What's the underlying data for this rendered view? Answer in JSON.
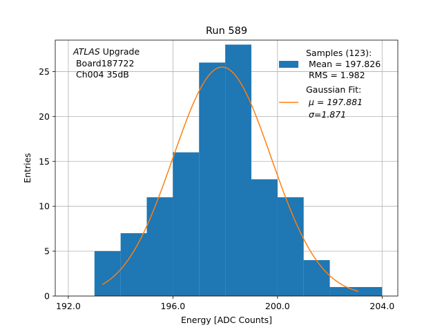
{
  "chart_data": {
    "type": "bar",
    "title": "Run 589",
    "xlabel": "Energy [ADC Counts]",
    "ylabel": "Entries",
    "xlim": [
      191.5,
      204.6
    ],
    "ylim": [
      0,
      28.5
    ],
    "grid": true,
    "legend_position": "top-right",
    "x_ticks": [
      192,
      196,
      200,
      204
    ],
    "x_tick_labels": [
      "192.0",
      "196.0",
      "200.0",
      "204.0"
    ],
    "y_ticks": [
      0,
      5,
      10,
      15,
      20,
      25
    ],
    "y_tick_labels": [
      "0",
      "5",
      "10",
      "15",
      "20",
      "25"
    ],
    "bin_edges": [
      193,
      194,
      195,
      196,
      197,
      198,
      199,
      200,
      201,
      202,
      203,
      204
    ],
    "values": [
      5,
      7,
      11,
      16,
      26,
      28,
      13,
      11,
      4,
      1,
      1
    ],
    "bar_color": "#1f77b4",
    "fit": {
      "type": "gaussian",
      "color": "#ff7f0e",
      "mu": 197.881,
      "sigma": 1.871,
      "amplitude": 25.5,
      "x_range": [
        193.3,
        203.1
      ]
    },
    "annotation": {
      "line1_italic": "ATLAS",
      "line1_rest": " Upgrade",
      "line2": " Board187722",
      "line3": " Ch004 35dB"
    },
    "legend": {
      "samples_label": "Samples (123):",
      "samples_mean": " Mean = 197.826",
      "samples_rms": " RMS = 1.982",
      "fit_label": "Gaussian Fit:",
      "fit_mu": " μ = 197.881",
      "fit_sigma": " σ=1.871"
    }
  }
}
